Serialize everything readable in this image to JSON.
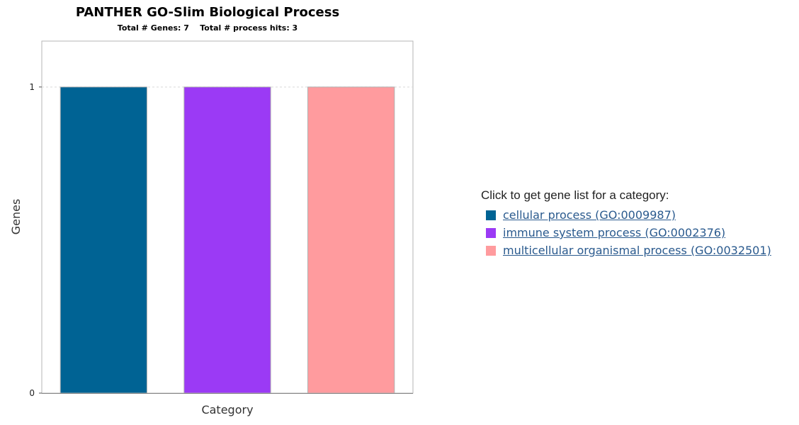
{
  "chart_data": {
    "type": "bar",
    "title": "PANTHER GO-Slim Biological Process",
    "subtitle": "Total # Genes: 7    Total # process hits: 3",
    "xlabel": "Category",
    "ylabel": "Genes",
    "ylim": [
      0,
      1.15
    ],
    "yticks": [
      0,
      1
    ],
    "grid": true,
    "legend_position": "right",
    "categories": [
      "cellular process (GO:0009987)",
      "immune system process (GO:0002376)",
      "multicellular organismal process (GO:0032501)"
    ],
    "values": [
      1,
      1,
      1
    ],
    "colors": [
      "#006394",
      "#9b3af5",
      "#ff9b9e"
    ]
  },
  "legend": {
    "heading": "Click to get gene list for a category:",
    "items": [
      {
        "label": "cellular process (GO:0009987)",
        "color": "#006394"
      },
      {
        "label": "immune system process (GO:0002376)",
        "color": "#9b3af5"
      },
      {
        "label": "multicellular organismal process (GO:0032501)",
        "color": "#ff9b9e"
      }
    ]
  }
}
